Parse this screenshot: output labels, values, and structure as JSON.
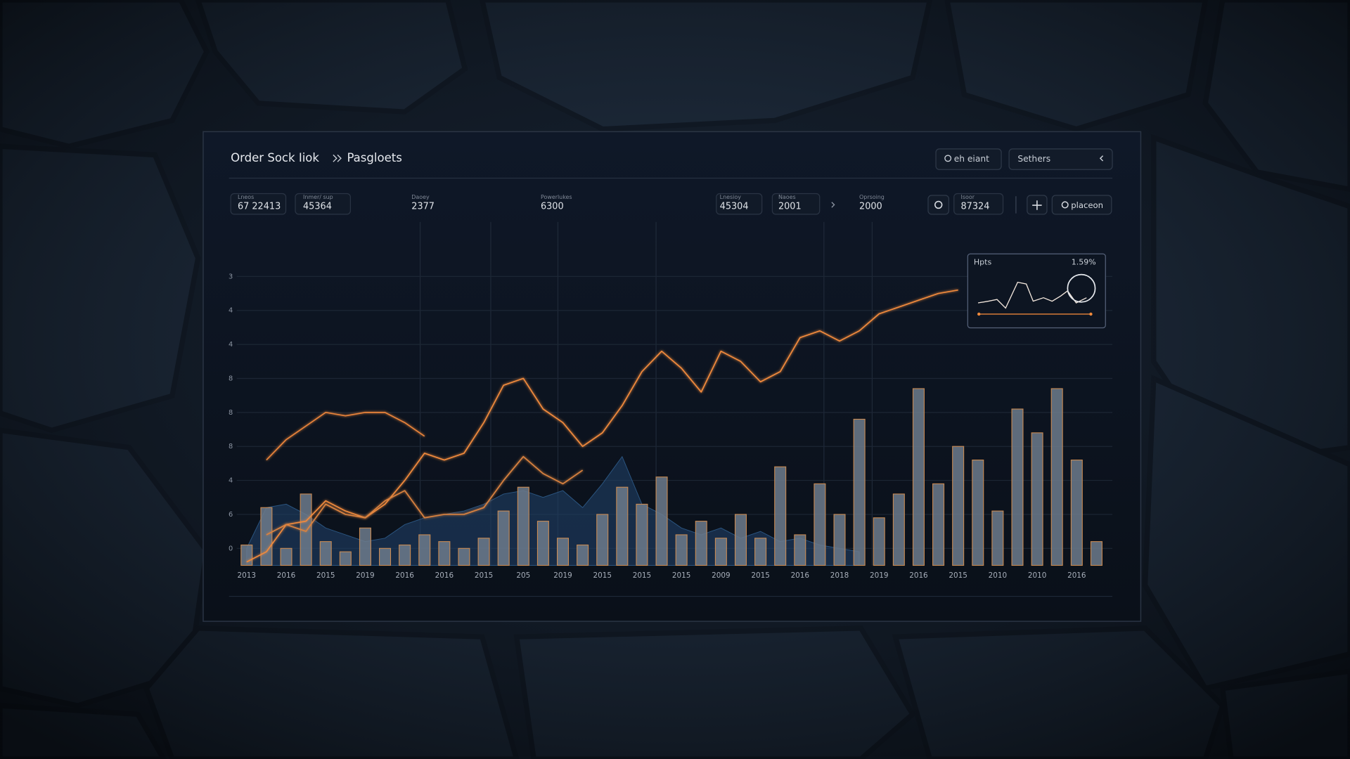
{
  "header": {
    "title": "Order Sock Iiok",
    "page": "Pasgloets",
    "search": "eh eiant",
    "settings": "Sethers",
    "action": "placeon"
  },
  "stats": [
    {
      "label": "Lneos",
      "value": "67 22413"
    },
    {
      "label": "Inmer/ sup",
      "value": "45364"
    },
    {
      "label": "Daoey",
      "value": "2377"
    },
    {
      "label": "Powerlukes",
      "value": "6300"
    },
    {
      "label": "Lnesioy",
      "value": "45304"
    },
    {
      "label": "Naoes",
      "value": "2001"
    },
    {
      "label": "Oprsoing",
      "value": "2000"
    },
    {
      "label": "Isoor",
      "value": "87324"
    }
  ],
  "inset": {
    "title": "Hpts",
    "value": "1.59%"
  },
  "chart_data": {
    "type": "bar",
    "categories": [
      "2013",
      null,
      "2016",
      null,
      "2015",
      null,
      "2019",
      null,
      "2016",
      null,
      "2016",
      null,
      "2015",
      null,
      "205",
      null,
      "2019",
      null,
      "2015",
      null,
      "2015",
      null,
      "2015",
      null,
      "2009",
      null,
      "2015",
      null,
      "2016",
      null,
      "2018",
      null,
      "2019",
      null,
      "2016",
      null,
      "2015",
      null,
      "2010",
      null,
      "2010",
      null,
      "2016",
      null
    ],
    "ylim": [
      0.5,
      9.5
    ],
    "yticks": [
      {
        "value": 1,
        "label": "0"
      },
      {
        "value": 2,
        "label": "6"
      },
      {
        "value": 3,
        "label": "4"
      },
      {
        "value": 4,
        "label": "8"
      },
      {
        "value": 5,
        "label": "8"
      },
      {
        "value": 6,
        "label": "8"
      },
      {
        "value": 7,
        "label": "4"
      },
      {
        "value": 8,
        "label": "4"
      },
      {
        "value": 9,
        "label": "3"
      }
    ],
    "grid": true,
    "series": [
      {
        "type": "area",
        "color": "#1f3f66",
        "values": [
          1.0,
          2.2,
          2.3,
          2.0,
          1.6,
          1.4,
          1.2,
          1.3,
          1.7,
          1.9,
          2.0,
          2.1,
          2.3,
          2.6,
          2.7,
          2.5,
          2.7,
          2.2,
          2.9,
          3.7,
          2.3,
          2.0,
          1.6,
          1.4,
          1.6,
          1.3,
          1.5,
          1.2,
          1.3,
          1.1,
          1.0,
          0.9,
          null,
          null,
          null,
          null,
          null,
          null,
          null,
          null,
          null,
          null,
          null,
          null
        ]
      },
      {
        "type": "bar",
        "color": "#6d7b8c",
        "values": [
          1.1,
          2.2,
          1.0,
          2.6,
          1.2,
          0.9,
          1.6,
          1.0,
          1.1,
          1.4,
          1.2,
          1.0,
          1.3,
          2.1,
          2.8,
          1.8,
          1.3,
          1.1,
          2.0,
          2.8,
          2.3,
          3.1,
          1.4,
          1.8,
          1.3,
          2.0,
          1.3,
          3.4,
          1.4,
          2.9,
          2.0,
          4.8,
          1.9,
          2.6,
          5.7,
          2.9,
          4.0,
          3.6,
          2.1,
          5.1,
          4.4,
          5.7,
          3.6,
          1.2
        ]
      },
      {
        "type": "line",
        "color": "#f08a3c",
        "values": [
          0.6,
          0.9,
          1.7,
          1.8,
          2.4,
          2.1,
          1.9,
          2.3,
          3.0,
          3.8,
          3.6,
          3.8,
          4.7,
          5.8,
          6.0,
          5.1,
          4.7,
          4.0,
          4.4,
          5.2,
          6.2,
          6.8,
          6.3,
          5.6,
          6.8,
          6.5,
          5.9,
          6.2,
          7.2,
          7.4,
          7.1,
          7.4,
          7.9,
          8.1,
          8.3,
          8.5,
          8.6,
          null,
          null,
          null,
          null,
          null,
          null,
          null
        ]
      },
      {
        "type": "line",
        "color": "#e8833a",
        "values": [
          null,
          3.6,
          4.2,
          4.6,
          5.0,
          4.9,
          5.0,
          5.0,
          4.7,
          4.3,
          null,
          null,
          null,
          null,
          null,
          null,
          null,
          null,
          null,
          null,
          null,
          null,
          null,
          null,
          null,
          null,
          null,
          null,
          null,
          null,
          null,
          null,
          null,
          null,
          null,
          null,
          null,
          null,
          null,
          null,
          null,
          null,
          null,
          null
        ]
      },
      {
        "type": "line",
        "color": "#d9823f",
        "values": [
          null,
          1.4,
          1.7,
          1.5,
          2.3,
          2.0,
          1.9,
          2.4,
          2.7,
          1.9,
          2.0,
          2.0,
          2.2,
          3.0,
          3.7,
          3.2,
          2.9,
          3.3,
          null,
          null,
          null,
          null,
          null,
          null,
          null,
          null,
          null,
          null,
          null,
          null,
          null,
          null,
          null,
          null,
          null,
          null,
          null,
          null,
          null,
          null,
          null,
          null,
          null,
          null
        ]
      }
    ]
  }
}
